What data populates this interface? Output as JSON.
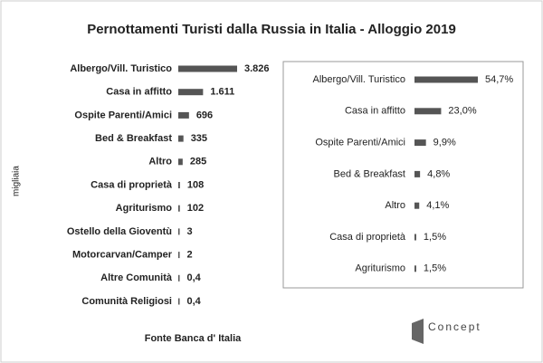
{
  "title": "Pernottamenti Turisti dalla Russia in Italia - Alloggio 2019",
  "source": "Fonte Banca d' Italia",
  "brand": "Concept",
  "chart_data": [
    {
      "type": "bar",
      "orientation": "horizontal",
      "y_label": "migliaia",
      "color": "#555555",
      "categories": [
        "Albergo/Vill. Turistico",
        "Casa in affitto",
        "Ospite Parenti/Amici",
        "Bed & Breakfast",
        "Altro",
        "Casa di proprietà",
        "Agriturismo",
        "Ostello della Gioventù",
        "Motorcarvan/Camper",
        "Altre Comunità",
        "Comunità Religiosi"
      ],
      "values": [
        3826,
        1611,
        696,
        335,
        285,
        108,
        102,
        3,
        2,
        0.4,
        0.4
      ],
      "value_labels": [
        "3.826",
        "1.611",
        "696",
        "335",
        "285",
        "108",
        "102",
        "3",
        "2",
        "0,4",
        "0,4"
      ]
    },
    {
      "type": "bar",
      "orientation": "horizontal",
      "color": "#555555",
      "categories": [
        "Albergo/Vill. Turistico",
        "Casa in affitto",
        "Ospite Parenti/Amici",
        "Bed & Breakfast",
        "Altro",
        "Casa di proprietà",
        "Agriturismo"
      ],
      "values": [
        54.7,
        23.0,
        9.9,
        4.8,
        4.1,
        1.5,
        1.5
      ],
      "value_labels": [
        "54,7%",
        "23,0%",
        "9,9%",
        "4,8%",
        "4,1%",
        "1,5%",
        "1,5%"
      ]
    }
  ]
}
